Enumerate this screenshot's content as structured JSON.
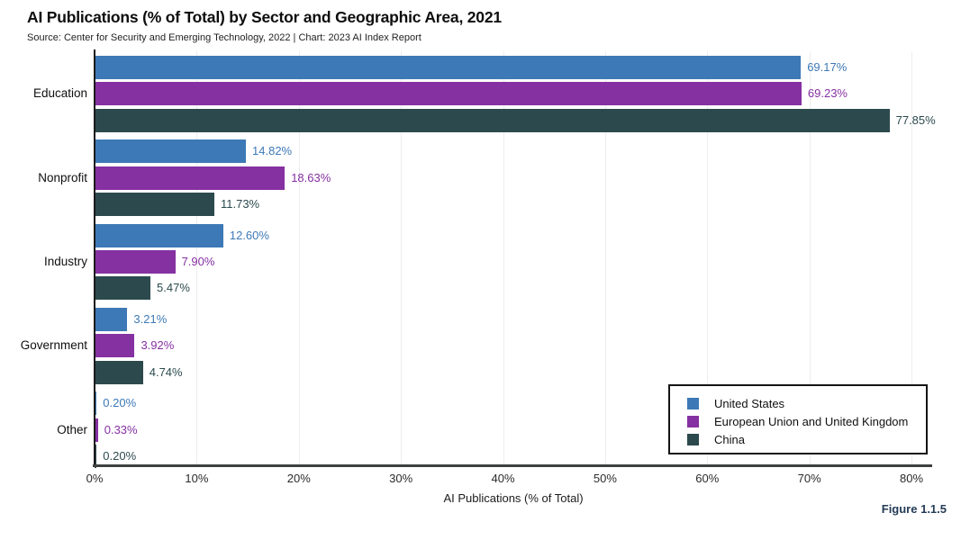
{
  "header": {
    "title": "AI Publications (% of Total) by Sector and Geographic Area, 2021",
    "source_line": "Source: Center for Security and Emerging Technology, 2022 | Chart: 2023 AI Index Report"
  },
  "chart_data": {
    "type": "bar",
    "orientation": "horizontal",
    "title": "AI Publications (% of Total) by Sector and Geographic Area, 2021",
    "subtitle": "Source: Center for Security and Emerging Technology, 2022 | Chart: 2023 AI Index Report",
    "categories": [
      "Education",
      "Nonprofit",
      "Industry",
      "Government",
      "Other"
    ],
    "series": [
      {
        "name": "United States",
        "color": "#3d79b6",
        "values": [
          69.17,
          14.82,
          12.6,
          3.21,
          0.2
        ]
      },
      {
        "name": "European Union and United Kingdom",
        "color": "#8531a1",
        "values": [
          69.23,
          18.63,
          7.9,
          3.92,
          0.33
        ]
      },
      {
        "name": "China",
        "color": "#2c4a4e",
        "values": [
          77.85,
          11.73,
          5.47,
          4.74,
          0.2
        ]
      }
    ],
    "value_label_format": "0.00%",
    "xlabel": "AI Publications (% of Total)",
    "xlim": [
      0,
      80
    ],
    "x_ticks": [
      "0%",
      "10%",
      "20%",
      "30%",
      "40%",
      "50%",
      "60%",
      "70%",
      "80%"
    ],
    "x_tick_values": [
      0,
      10,
      20,
      30,
      40,
      50,
      60,
      70,
      80
    ],
    "grid": "vertical-light",
    "legend_position": "bottom-right"
  },
  "footer": {
    "figure_label": "Figure 1.1.5"
  },
  "colors": {
    "united_states": "#3d79b6",
    "eu_uk": "#8531a1",
    "china": "#2c4a4e",
    "axis": "#3f4040",
    "gridline": "#ededed",
    "figure_label": "#253c56"
  }
}
